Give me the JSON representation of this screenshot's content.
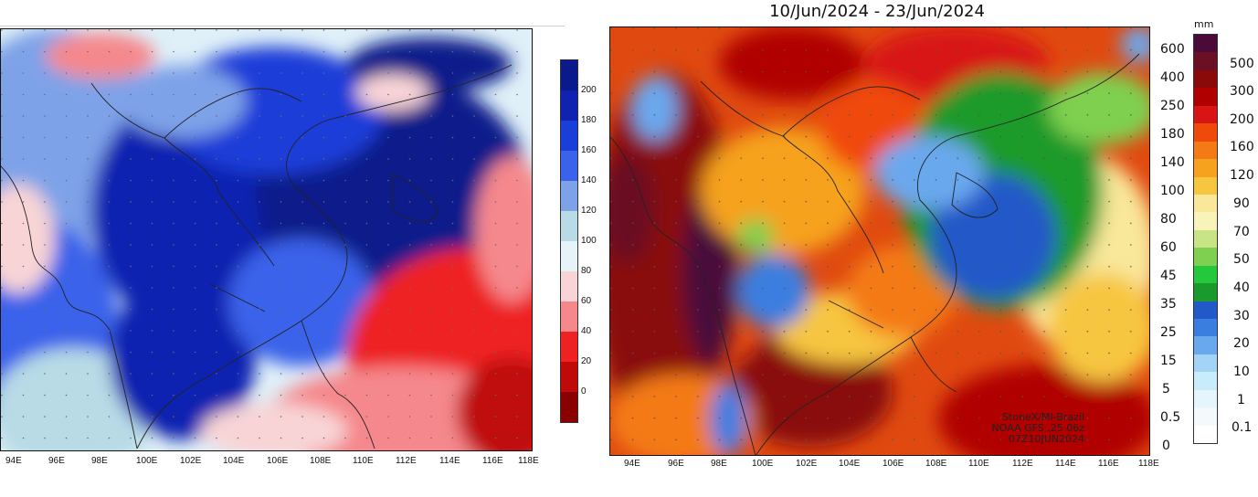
{
  "right_panel": {
    "title": "10/Jun/2024 - 23/Jun/2024",
    "unit_label": "mm",
    "credit_lines": [
      "StoneX/MI-Brazil",
      "NOAA GFS .25 06z",
      "07Z10JUN2024"
    ],
    "scale_labels": [
      "600",
      "400",
      "250",
      "180",
      "140",
      "100",
      "80",
      "60",
      "45",
      "35",
      "25",
      "15",
      "5",
      "0.5",
      "0"
    ],
    "legend_labels": [
      "500",
      "300",
      "200",
      "160",
      "120",
      "90",
      "70",
      "50",
      "40",
      "30",
      "20",
      "10",
      "1",
      "0.1"
    ],
    "legend_colors": [
      "#4a0a3a",
      "#6b0f24",
      "#8a0a0a",
      "#b00000",
      "#d81414",
      "#f04a0a",
      "#f47a16",
      "#f6a21e",
      "#f7c640",
      "#f9e79a",
      "#f8f3b8",
      "#c8e486",
      "#7fd050",
      "#24c83a",
      "#1a9a2c",
      "#2259c8",
      "#3a7ee0",
      "#6aa8ee",
      "#a3d4f6",
      "#c8ecfa",
      "#e4f5fb",
      "#f4f9fb",
      "#ffffff"
    ]
  },
  "left_panel": {
    "colorbar_labels": [
      "200",
      "180",
      "160",
      "140",
      "120",
      "100",
      "80",
      "60",
      "40",
      "20",
      "0"
    ],
    "colorbar_colors": [
      "#0a1a8a",
      "#1022b0",
      "#1a3ed8",
      "#3a62ea",
      "#7ea2e8",
      "#b8dbe6",
      "#e6f3f8",
      "#f8d4d6",
      "#f5888c",
      "#ee2222",
      "#c00a0a",
      "#8a0000"
    ]
  },
  "axis": {
    "left_x_labels": [
      "94E",
      "96E",
      "98E",
      "100E",
      "102E",
      "104E",
      "106E",
      "108E",
      "110E",
      "112E",
      "114E",
      "116E",
      "118E"
    ],
    "right_x_labels": [
      "94E",
      "96E",
      "98E",
      "100E",
      "102E",
      "104E",
      "106E",
      "108E",
      "110E",
      "112E",
      "114E",
      "116E",
      "118E"
    ]
  }
}
